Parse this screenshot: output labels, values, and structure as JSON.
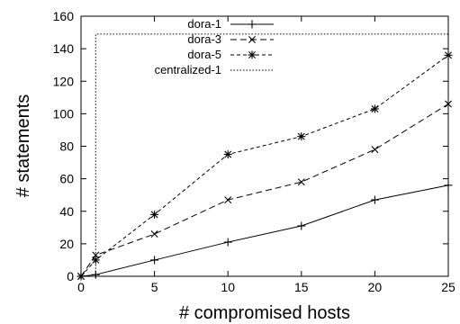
{
  "chart_data": {
    "type": "line",
    "title": "",
    "xlabel": "# compromised hosts",
    "ylabel": "# statements",
    "xlim": [
      0,
      25
    ],
    "ylim": [
      0,
      160
    ],
    "xticks": [
      0,
      5,
      10,
      15,
      20,
      25
    ],
    "yticks": [
      0,
      20,
      40,
      60,
      80,
      100,
      120,
      140,
      160
    ],
    "grid": false,
    "legend_position": "top-left",
    "series": [
      {
        "name": "dora-1",
        "dash": "solid",
        "marker": "plus",
        "x": [
          0,
          1,
          5,
          10,
          15,
          20,
          25
        ],
        "y": [
          0,
          1,
          10,
          21,
          31,
          47,
          56
        ]
      },
      {
        "name": "dora-3",
        "dash": "dashed",
        "marker": "cross",
        "x": [
          0,
          1,
          5,
          10,
          15,
          20,
          25
        ],
        "y": [
          0,
          13,
          26,
          47,
          58,
          78,
          106
        ]
      },
      {
        "name": "dora-5",
        "dash": "short-dashed",
        "marker": "star",
        "x": [
          0,
          1,
          5,
          10,
          15,
          20,
          25
        ],
        "y": [
          0,
          10,
          38,
          75,
          86,
          103,
          136
        ]
      },
      {
        "name": "centralized-1",
        "dash": "dotted",
        "marker": "none",
        "x": [
          0,
          1,
          1,
          25
        ],
        "y": [
          0,
          0,
          149,
          149
        ]
      }
    ]
  }
}
